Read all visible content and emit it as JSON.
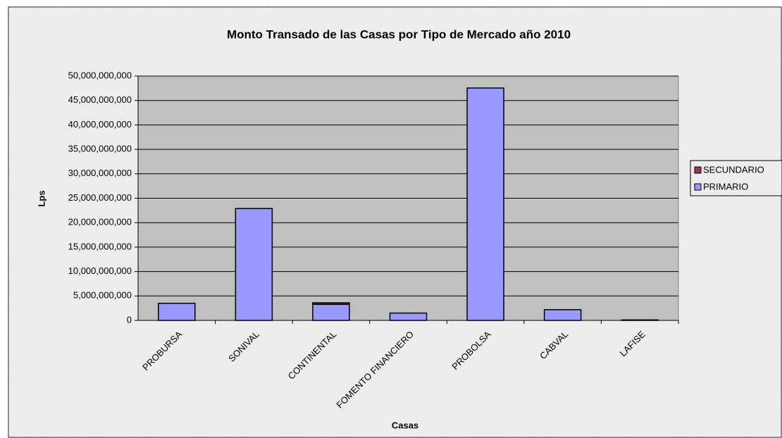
{
  "chart_data": {
    "type": "stacked_bar",
    "title": "Monto Transado de las Casas por Tipo de Mercado año 2010",
    "x_label": "Casas",
    "y_label": "Lps",
    "categories": [
      "PROBURSA",
      "SONIVAL",
      "CONTINENTAL",
      "FOMENTO FINANCIERO",
      "PROBOLSA",
      "CABVAL",
      "LAFISE"
    ],
    "series": [
      {
        "name": "PRIMARIO",
        "color": "#9999ff",
        "values": [
          3500000000,
          22900000000,
          3300000000,
          1500000000,
          47550000000,
          2200000000,
          100000000
        ]
      },
      {
        "name": "SECUNDARIO",
        "color": "#993366",
        "values": [
          0,
          0,
          300000000,
          0,
          0,
          0,
          0
        ]
      }
    ],
    "ylim": [
      0,
      50000000000
    ],
    "yticks": [
      {
        "value": 0,
        "label": "0"
      },
      {
        "value": 5000000000,
        "label": "5,000,000,000"
      },
      {
        "value": 10000000000,
        "label": "10,000,000,000"
      },
      {
        "value": 15000000000,
        "label": "15,000,000,000"
      },
      {
        "value": 20000000000,
        "label": "20,000,000,000"
      },
      {
        "value": 25000000000,
        "label": "25,000,000,000"
      },
      {
        "value": 30000000000,
        "label": "30,000,000,000"
      },
      {
        "value": 35000000000,
        "label": "35,000,000,000"
      },
      {
        "value": 40000000000,
        "label": "40,000,000,000"
      },
      {
        "value": 45000000000,
        "label": "45,000,000,000"
      },
      {
        "value": 50000000000,
        "label": "50,000,000,000"
      }
    ],
    "grid": true,
    "legend": "right"
  }
}
